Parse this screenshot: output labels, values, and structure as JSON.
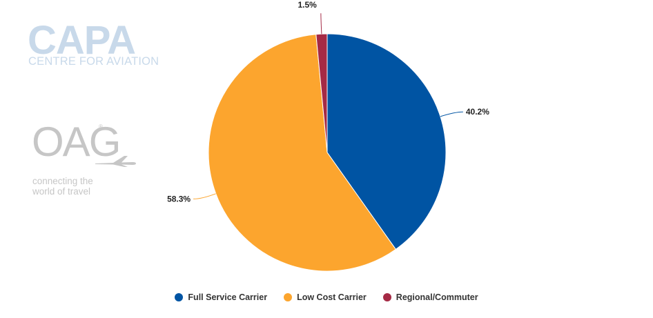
{
  "logos": {
    "capa": {
      "name": "CAPA",
      "tagline": "CENTRE FOR AVIATION",
      "color": "#c8d9ea"
    },
    "oag": {
      "name": "OAG",
      "tagline_line1": "connecting the",
      "tagline_line2": "world of travel",
      "color": "#c6c6c6"
    }
  },
  "chart_data": {
    "type": "pie",
    "title": "",
    "start_angle_deg": 0,
    "direction": "clockwise",
    "slices": [
      {
        "label": "Full Service Carrier",
        "value": 40.2,
        "display": "40.2%",
        "color": "#0054a3"
      },
      {
        "label": "Low Cost Carrier",
        "value": 58.3,
        "display": "58.3%",
        "color": "#fca52e"
      },
      {
        "label": "Regional/Commuter",
        "value": 1.5,
        "display": "1.5%",
        "color": "#a52a45"
      }
    ],
    "legend_position": "bottom-center"
  }
}
